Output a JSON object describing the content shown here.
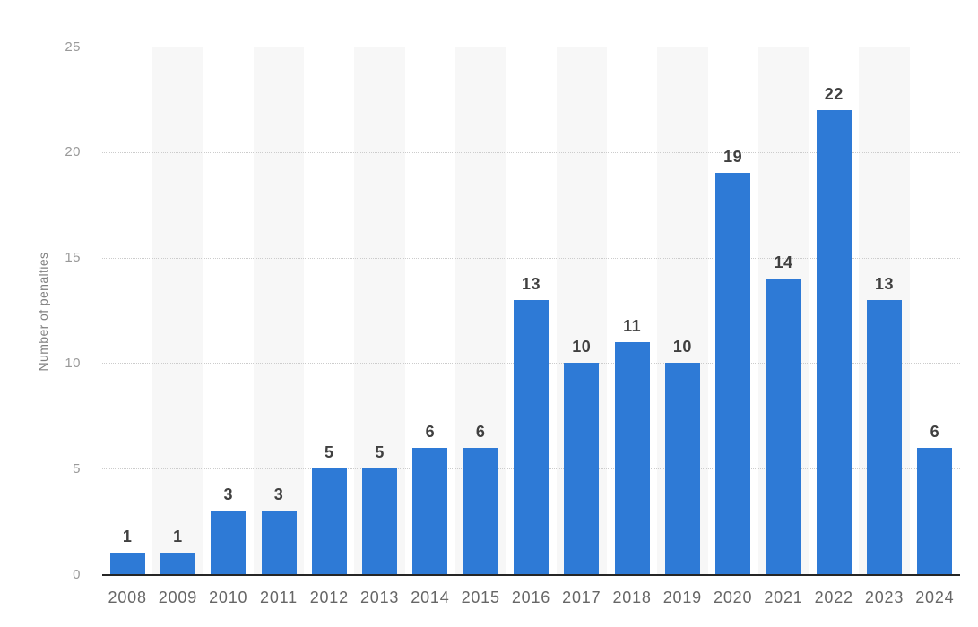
{
  "chart_data": {
    "type": "bar",
    "title": "",
    "xlabel": "",
    "ylabel": "Number of penalties",
    "categories": [
      "2008",
      "2009",
      "2010",
      "2011",
      "2012",
      "2013",
      "2014",
      "2015",
      "2016",
      "2017",
      "2018",
      "2019",
      "2020",
      "2021",
      "2022",
      "2023",
      "2024"
    ],
    "values": [
      1,
      1,
      3,
      3,
      5,
      5,
      6,
      6,
      13,
      10,
      11,
      10,
      19,
      14,
      22,
      13,
      6
    ],
    "yticks": [
      0,
      5,
      10,
      15,
      20,
      25
    ],
    "ylim": [
      0,
      25
    ],
    "grid": {
      "horizontal": true,
      "style": "dotted"
    },
    "value_labels": true,
    "band_pattern": "alternating white / light gray per category",
    "colors": {
      "bar": "#2E7AD6",
      "alt_band": "#F7F7F7",
      "gridline": "#CCCCCC",
      "axis_line": "#262626",
      "value_label": "#404040",
      "x_tick_label": "#666666",
      "y_tick_label": "#999999",
      "y_axis_title": "#808080",
      "background": "#FFFFFF"
    }
  }
}
